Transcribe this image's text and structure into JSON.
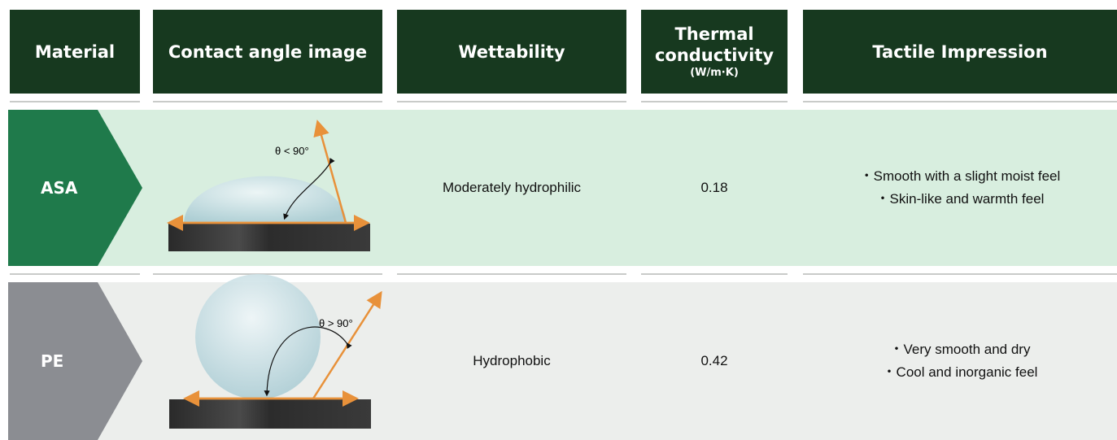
{
  "header": {
    "columns": [
      "Material",
      "Contact angle image",
      "Wettability",
      "Thermal conductivity",
      "Tactile Impression"
    ],
    "unit": "(W/m·K)"
  },
  "rows": [
    {
      "material": "ASA",
      "angle_label": "θ < 90°",
      "wettability": "Moderately hydrophilic",
      "thermal": 0.18,
      "tactile": [
        "・Smooth with a slight moist feel",
        "・Skin-like and warmth feel"
      ]
    },
    {
      "material": "PE",
      "angle_label": "θ > 90°",
      "wettability": "Hydrophobic",
      "thermal": 0.42,
      "tactile": [
        "・Very smooth and dry",
        "・Cool and inorganic feel"
      ]
    }
  ]
}
